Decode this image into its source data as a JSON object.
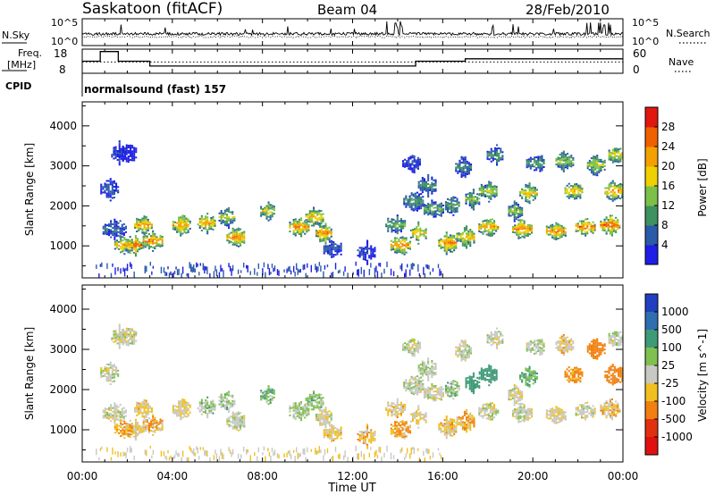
{
  "header": {
    "station": "Saskatoon (fitACF)",
    "beam": "Beam 04",
    "date": "28/Feb/2010"
  },
  "left_labels": {
    "nsky": "N.Sky",
    "freq_line1": "Freq.",
    "freq_line2": "[MHz]",
    "cpid": "CPID"
  },
  "right_labels": {
    "nsearch": "N.Search",
    "nave": "Nave"
  },
  "cpid_text": "normalsound (fast) 157",
  "x_axis_label": "Time UT",
  "chart_data": [
    {
      "type": "line",
      "name": "noise-panel",
      "left_ticks": [
        "10^5",
        "10^0"
      ],
      "right_ticks": [
        "10^5",
        "10^0"
      ],
      "series": [
        {
          "name": "N.Sky"
        },
        {
          "name": "N.Search"
        }
      ]
    },
    {
      "type": "line",
      "name": "frequency-panel",
      "left_ticks": [
        "18",
        "8"
      ],
      "right_ticks": [
        "60",
        "0"
      ],
      "ylim_left": [
        8,
        18
      ],
      "ylim_right": [
        0,
        60
      ],
      "x": [
        0,
        0.8,
        1.0,
        1.6,
        3.0,
        4.6,
        9.0,
        14.3,
        14.8,
        15.4,
        16.5,
        17.0,
        17.3,
        24
      ],
      "series": [
        {
          "name": "Freq.",
          "values": [
            13,
            17,
            17,
            13,
            11,
            11,
            11,
            11,
            13,
            13,
            13,
            14,
            14,
            14
          ]
        },
        {
          "name": "Nave",
          "values": [
            28,
            28,
            28,
            28,
            28,
            28,
            28,
            28,
            28,
            28,
            28,
            28,
            28,
            28
          ]
        }
      ]
    },
    {
      "type": "heatmap",
      "name": "power-panel",
      "ylabel": "Slant Range [km]",
      "yticks": [
        1000,
        2000,
        3000,
        4000
      ],
      "ylim": [
        200,
        4600
      ],
      "xlim": [
        0,
        24
      ],
      "colorbar_label": "Power [dB]",
      "colorbar_ticks": [
        4,
        8,
        12,
        16,
        20,
        24,
        28
      ],
      "colorbar_range": [
        0,
        32
      ],
      "colors": [
        "#1e1ee6",
        "#2a5aa8",
        "#3f9160",
        "#7cc04a",
        "#f0d000",
        "#f4a000",
        "#f06000",
        "#e01810"
      ]
    },
    {
      "type": "heatmap",
      "name": "velocity-panel",
      "ylabel": "Slant Range [km]",
      "yticks": [
        1000,
        2000,
        3000,
        4000
      ],
      "ylim": [
        200,
        4600
      ],
      "xlim": [
        0,
        24
      ],
      "colorbar_label": "Velocity [m s^-1]",
      "colorbar_ticks": [
        "1000",
        "500",
        "100",
        "25",
        "-25",
        "-100",
        "-500",
        "-1000"
      ],
      "colors": [
        "#2040c0",
        "#2f6fb0",
        "#3f9a78",
        "#80c050",
        "#c8c8c4",
        "#f0c020",
        "#f08010",
        "#e03010",
        "#e01010"
      ]
    }
  ],
  "x_ticks": [
    "00:00",
    "04:00",
    "08:00",
    "12:00",
    "16:00",
    "20:00",
    "00:00"
  ],
  "segments": [
    [
      2.0,
      3300,
      0.4,
      0.4,
      1
    ],
    [
      1.4,
      1400,
      0.5,
      7,
      3
    ],
    [
      1.2,
      2400,
      0.4,
      6,
      3
    ],
    [
      1.6,
      3300,
      0.32,
      4,
      1
    ],
    [
      2.3,
      1000,
      0.38,
      27,
      -20
    ],
    [
      2.7,
      1500,
      0.4,
      23,
      -30
    ],
    [
      3.1,
      1100,
      0.42,
      25,
      -40
    ],
    [
      1.8,
      1000,
      0.38,
      22,
      -60
    ],
    [
      4.4,
      1500,
      0.4,
      23,
      -20
    ],
    [
      5.5,
      1550,
      0.4,
      23,
      30
    ],
    [
      6.8,
      1200,
      0.4,
      24,
      10
    ],
    [
      6.4,
      1700,
      0.35,
      16,
      30
    ],
    [
      9.6,
      1450,
      0.42,
      25,
      20
    ],
    [
      10.3,
      1700,
      0.4,
      20,
      30
    ],
    [
      10.7,
      1300,
      0.35,
      24,
      -10
    ],
    [
      8.2,
      1850,
      0.3,
      18,
      40
    ],
    [
      11.1,
      900,
      0.4,
      6,
      -30
    ],
    [
      12.6,
      820,
      0.4,
      4,
      -40
    ],
    [
      13.9,
      1500,
      0.45,
      14,
      -25
    ],
    [
      14.1,
      1000,
      0.42,
      25,
      -60
    ],
    [
      14.7,
      2100,
      0.45,
      11,
      10
    ],
    [
      14.9,
      1300,
      0.35,
      21,
      -20
    ],
    [
      15.3,
      2500,
      0.4,
      10,
      20
    ],
    [
      15.6,
      1900,
      0.45,
      13,
      0
    ],
    [
      16.2,
      1050,
      0.4,
      25,
      -30
    ],
    [
      16.4,
      2000,
      0.3,
      12,
      40
    ],
    [
      17.0,
      1200,
      0.4,
      20,
      -50
    ],
    [
      18.0,
      2350,
      0.4,
      17,
      150
    ],
    [
      18.0,
      1450,
      0.42,
      23,
      5
    ],
    [
      19.5,
      1400,
      0.42,
      25,
      0
    ],
    [
      21.0,
      1350,
      0.42,
      25,
      -20
    ],
    [
      22.3,
      1450,
      0.42,
      26,
      0
    ],
    [
      23.4,
      1500,
      0.42,
      27,
      -30
    ],
    [
      19.8,
      2300,
      0.4,
      19,
      60
    ],
    [
      21.8,
      2350,
      0.4,
      21,
      -80
    ],
    [
      23.6,
      2350,
      0.42,
      23,
      -160
    ],
    [
      20.1,
      3050,
      0.4,
      11,
      10
    ],
    [
      21.4,
      3100,
      0.4,
      15,
      -25
    ],
    [
      22.8,
      3000,
      0.4,
      17,
      -120
    ],
    [
      23.7,
      3250,
      0.35,
      20,
      10
    ],
    [
      18.3,
      3250,
      0.35,
      10,
      0
    ],
    [
      16.9,
      2950,
      0.35,
      9,
      5
    ],
    [
      14.6,
      3050,
      0.4,
      5,
      10
    ],
    [
      17.3,
      2150,
      0.3,
      15,
      130
    ],
    [
      19.2,
      1850,
      0.3,
      15,
      -10
    ]
  ]
}
